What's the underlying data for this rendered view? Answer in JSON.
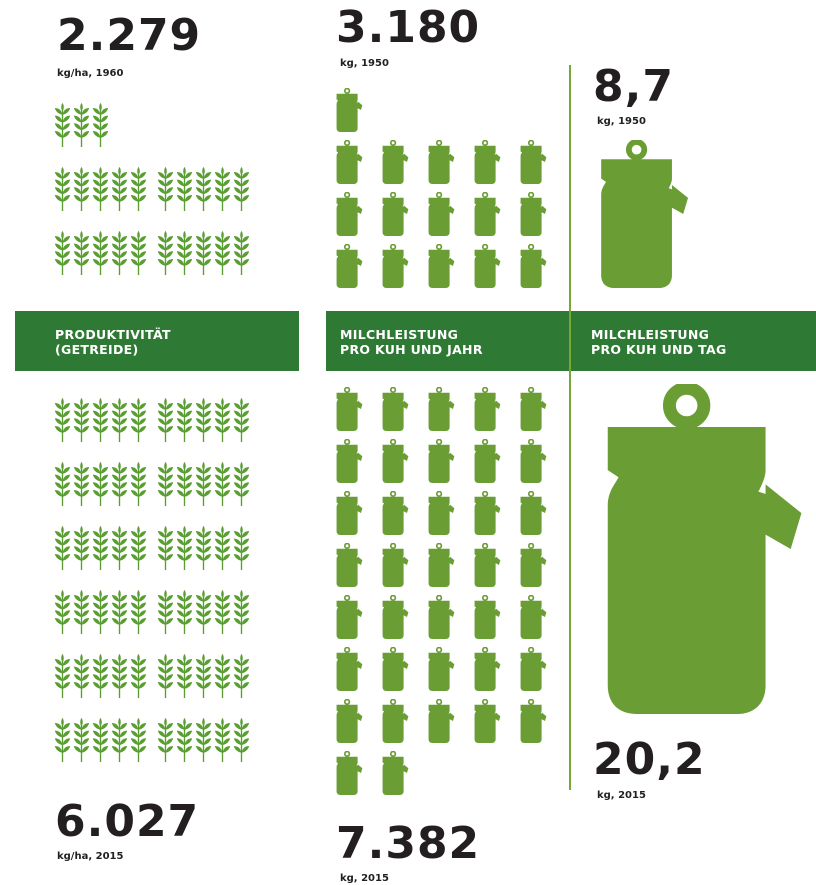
{
  "colors": {
    "wheat": "#5a9e33",
    "milk_can": "#6a9e35",
    "band": "#2e7a34",
    "divider": "#76a838",
    "text": "#231f20"
  },
  "icons": {
    "grain": "wheat-ear-icon",
    "milk": "milk-can-icon"
  },
  "productivity": {
    "label": "PRODUKTIVITÄT\n(GETREIDE)",
    "before": {
      "value": "2.279",
      "unit": "kg/ha, 1960",
      "icon_count": 23
    },
    "after": {
      "value": "6.027",
      "unit": "kg/ha, 2015",
      "icon_count": 60
    }
  },
  "milk_year": {
    "label": "MILCHLEISTUNG\nPRO KUH UND JAHR",
    "before": {
      "value": "3.180",
      "unit": "kg, 1950",
      "icon_count": 16
    },
    "after": {
      "value": "7.382",
      "unit": "kg, 2015",
      "icon_count": 37
    }
  },
  "milk_day": {
    "label": "MILCHLEISTUNG\nPRO KUH UND TAG",
    "before": {
      "value": "8,7",
      "unit": "kg, 1950"
    },
    "after": {
      "value": "20,2",
      "unit": "kg, 2015"
    }
  }
}
